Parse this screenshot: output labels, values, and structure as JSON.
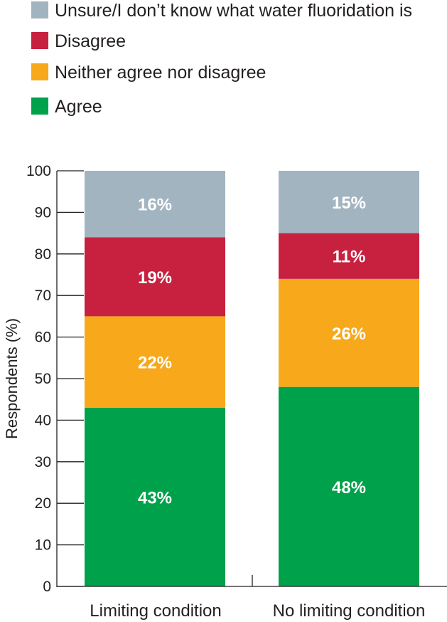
{
  "chart_data": {
    "type": "bar",
    "stacked": true,
    "categories": [
      "Limiting condition",
      "No limiting condition"
    ],
    "series": [
      {
        "name": "Agree",
        "values": [
          43,
          48
        ],
        "labels": [
          "43%",
          "48%"
        ],
        "color": "#00a14b"
      },
      {
        "name": "Neither agree nor disagree",
        "values": [
          22,
          26
        ],
        "labels": [
          "22%",
          "26%"
        ],
        "color": "#f7a81b"
      },
      {
        "name": "Disagree",
        "values": [
          19,
          11
        ],
        "labels": [
          "19%",
          "11%"
        ],
        "color": "#c8203f"
      },
      {
        "name": "Unsure/I don’t know what water fluoridation is",
        "values": [
          16,
          15
        ],
        "labels": [
          "16%",
          "15%"
        ],
        "color": "#a2b4c0"
      }
    ],
    "legend_order": [
      3,
      2,
      1,
      0
    ],
    "legend_position": "top-left",
    "ylabel": "Respondents (%)",
    "xlabel": "",
    "ylim": [
      0,
      100
    ],
    "yticks": [
      0,
      10,
      20,
      30,
      40,
      50,
      60,
      70,
      80,
      90,
      100
    ],
    "grid": false
  }
}
